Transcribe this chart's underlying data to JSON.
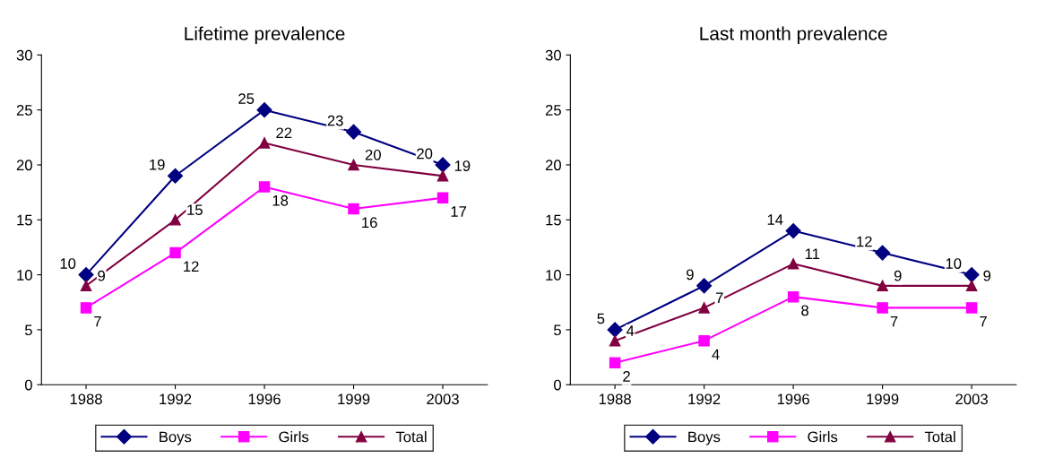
{
  "chart_data": [
    {
      "type": "line",
      "title": "Lifetime prevalence",
      "categories": [
        "1988",
        "1992",
        "1996",
        "1999",
        "2003"
      ],
      "ylim": [
        0,
        30
      ],
      "yticks": [
        0,
        5,
        10,
        15,
        20,
        25,
        30
      ],
      "data_labels": true,
      "grid": false,
      "legend": "bottom",
      "series": [
        {
          "name": "Boys",
          "color": "#000080",
          "marker": "diamond",
          "values": [
            10,
            19,
            25,
            23,
            20
          ]
        },
        {
          "name": "Girls",
          "color": "#ff00ff",
          "marker": "square",
          "values": [
            7,
            12,
            18,
            16,
            17
          ]
        },
        {
          "name": "Total",
          "color": "#800040",
          "marker": "triangle",
          "values": [
            9,
            15,
            22,
            20,
            19
          ]
        }
      ]
    },
    {
      "type": "line",
      "title": "Last month prevalence",
      "categories": [
        "1988",
        "1992",
        "1996",
        "1999",
        "2003"
      ],
      "ylim": [
        0,
        30
      ],
      "yticks": [
        0,
        5,
        10,
        15,
        20,
        25,
        30
      ],
      "data_labels": true,
      "grid": false,
      "legend": "bottom",
      "series": [
        {
          "name": "Boys",
          "color": "#000080",
          "marker": "diamond",
          "values": [
            5,
            9,
            14,
            12,
            10
          ]
        },
        {
          "name": "Girls",
          "color": "#ff00ff",
          "marker": "square",
          "values": [
            2,
            4,
            8,
            7,
            7
          ]
        },
        {
          "name": "Total",
          "color": "#800040",
          "marker": "triangle",
          "values": [
            4,
            7,
            11,
            9,
            9
          ]
        }
      ]
    }
  ]
}
